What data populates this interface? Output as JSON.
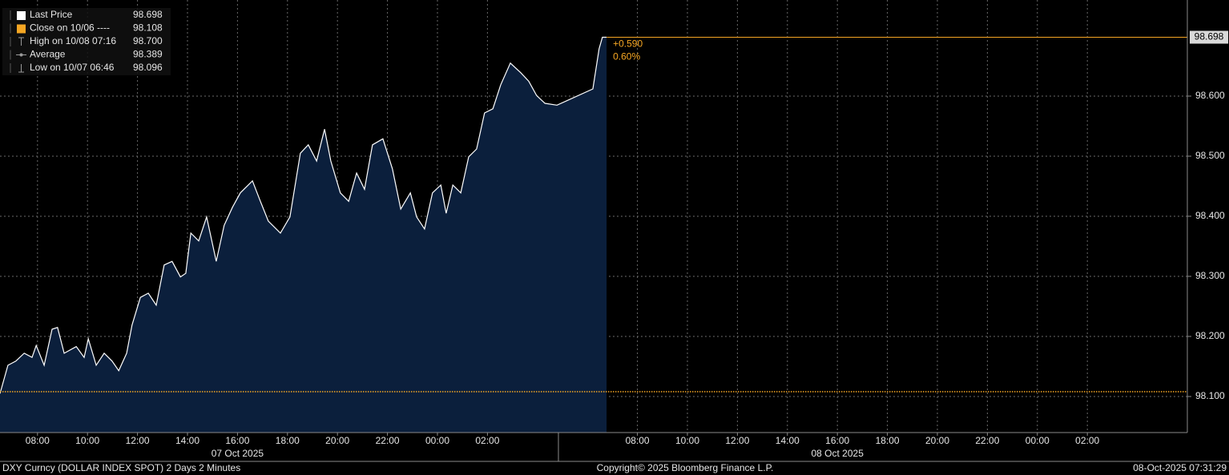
{
  "chart_data": {
    "type": "area",
    "footer_left": "DXY Curncy (DOLLAR INDEX SPOT) 2 Days 2 Minutes",
    "footer_center": "Copyright© 2025 Bloomberg Finance L.P.",
    "footer_right": "08-Oct-2025 07:31:29",
    "date_labels": [
      {
        "value": "2025-10-07 16:00",
        "label": "07 Oct 2025"
      },
      {
        "value": "2025-10-08 16:00",
        "label": "08 Oct 2025"
      }
    ],
    "xlim": [
      "2025-10-07 06:30",
      "2025-10-09 06:00"
    ],
    "xticks": [
      {
        "value": "2025-10-07 08:00",
        "label": "08:00"
      },
      {
        "value": "2025-10-07 10:00",
        "label": "10:00"
      },
      {
        "value": "2025-10-07 12:00",
        "label": "12:00"
      },
      {
        "value": "2025-10-07 14:00",
        "label": "14:00"
      },
      {
        "value": "2025-10-07 16:00",
        "label": "16:00"
      },
      {
        "value": "2025-10-07 18:00",
        "label": "18:00"
      },
      {
        "value": "2025-10-07 20:00",
        "label": "20:00"
      },
      {
        "value": "2025-10-07 22:00",
        "label": "22:00"
      },
      {
        "value": "2025-10-08 00:00",
        "label": "00:00"
      },
      {
        "value": "2025-10-08 02:00",
        "label": "02:00"
      },
      {
        "value": "2025-10-08 08:00",
        "label": "08:00"
      },
      {
        "value": "2025-10-08 10:00",
        "label": "10:00"
      },
      {
        "value": "2025-10-08 12:00",
        "label": "12:00"
      },
      {
        "value": "2025-10-08 14:00",
        "label": "14:00"
      },
      {
        "value": "2025-10-08 16:00",
        "label": "16:00"
      },
      {
        "value": "2025-10-08 18:00",
        "label": "18:00"
      },
      {
        "value": "2025-10-08 20:00",
        "label": "20:00"
      },
      {
        "value": "2025-10-08 22:00",
        "label": "22:00"
      },
      {
        "value": "2025-10-09 00:00",
        "label": "00:00"
      },
      {
        "value": "2025-10-09 02:00",
        "label": "02:00"
      }
    ],
    "ylim": [
      98.04,
      98.76
    ],
    "yticks": [
      {
        "value": 98.1,
        "label": "98.100"
      },
      {
        "value": 98.2,
        "label": "98.200"
      },
      {
        "value": 98.3,
        "label": "98.300"
      },
      {
        "value": 98.4,
        "label": "98.400"
      },
      {
        "value": 98.5,
        "label": "98.500"
      },
      {
        "value": 98.6,
        "label": "98.600"
      }
    ],
    "grid": true,
    "x": [
      "2025-10-07 06:30",
      "2025-10-07 06:49",
      "2025-10-07 07:08",
      "2025-10-07 07:28",
      "2025-10-07 07:47",
      "2025-10-07 07:57",
      "2025-10-07 08:16",
      "2025-10-07 08:35",
      "2025-10-07 08:48",
      "2025-10-07 09:04",
      "2025-10-07 09:33",
      "2025-10-07 09:52",
      "2025-10-07 10:02",
      "2025-10-07 10:21",
      "2025-10-07 10:40",
      "2025-10-07 10:59",
      "2025-10-07 11:15",
      "2025-10-07 11:34",
      "2025-10-07 11:47",
      "2025-10-07 12:07",
      "2025-10-07 12:26",
      "2025-10-07 12:45",
      "2025-10-07 13:04",
      "2025-10-07 13:23",
      "2025-10-07 13:43",
      "2025-10-07 13:56",
      "2025-10-07 14:08",
      "2025-10-07 14:27",
      "2025-10-07 14:46",
      "2025-10-07 15:09",
      "2025-10-07 15:28",
      "2025-10-07 15:48",
      "2025-10-07 16:07",
      "2025-10-07 16:36",
      "2025-10-07 16:55",
      "2025-10-07 17:14",
      "2025-10-07 17:43",
      "2025-10-07 18:06",
      "2025-10-07 18:31",
      "2025-10-07 18:50",
      "2025-10-07 19:10",
      "2025-10-07 19:29",
      "2025-10-07 19:44",
      "2025-10-07 20:07",
      "2025-10-07 20:27",
      "2025-10-07 20:46",
      "2025-10-07 21:05",
      "2025-10-07 21:24",
      "2025-10-07 21:49",
      "2025-10-07 22:12",
      "2025-10-07 22:32",
      "2025-10-07 22:55",
      "2025-10-07 23:10",
      "2025-10-07 23:29",
      "2025-10-07 23:48",
      "2025-10-08 00:08",
      "2025-10-08 00:21",
      "2025-10-08 00:37",
      "2025-10-08 00:56",
      "2025-10-08 01:15",
      "2025-10-08 01:34",
      "2025-10-08 01:53",
      "2025-10-08 02:13",
      "2025-10-08 02:32",
      "2025-10-08 02:55",
      "2025-10-08 03:20",
      "2025-10-08 03:39",
      "2025-10-08 03:58",
      "2025-10-08 04:18",
      "2025-10-08 04:47",
      "2025-10-08 06:13",
      "2025-10-08 06:28",
      "2025-10-08 06:36",
      "2025-10-08 06:46"
    ],
    "series": [
      {
        "name": "Last Price",
        "color": "#ffffff",
        "fill": "#0b1f3c",
        "values": [
          98.105,
          98.152,
          98.159,
          98.172,
          98.165,
          98.185,
          98.152,
          98.212,
          98.215,
          98.172,
          98.183,
          98.165,
          98.196,
          98.152,
          98.172,
          98.159,
          98.143,
          98.172,
          98.219,
          98.265,
          98.272,
          98.252,
          98.319,
          98.325,
          98.299,
          98.305,
          98.372,
          98.359,
          98.399,
          98.325,
          98.385,
          98.415,
          98.439,
          98.459,
          98.425,
          98.392,
          98.372,
          98.399,
          98.505,
          98.519,
          98.492,
          98.545,
          98.492,
          98.439,
          98.425,
          98.472,
          98.445,
          98.519,
          98.529,
          98.479,
          98.412,
          98.439,
          98.399,
          98.379,
          98.439,
          98.452,
          98.405,
          98.452,
          98.439,
          98.499,
          98.512,
          98.572,
          98.579,
          98.619,
          98.655,
          98.639,
          98.625,
          98.601,
          98.588,
          98.585,
          98.612,
          98.679,
          98.698,
          98.698
        ]
      }
    ],
    "reference_lines": [
      {
        "name": "Close on 10/06",
        "value": 98.108,
        "color": "#f5a623",
        "style": "dotted"
      },
      {
        "name": "Last Price",
        "value": 98.698,
        "color": "#f5a623",
        "style": "solid"
      }
    ],
    "annotations": [
      "+0.590",
      "0.60%"
    ],
    "legend": [
      {
        "label": "Last Price",
        "value": 98.698,
        "icon": "square",
        "color": "#ffffff"
      },
      {
        "label": "Close on 10/06 ----",
        "value": 98.108,
        "icon": "square",
        "color": "#f5a623"
      },
      {
        "label": "High on 10/08 07:16",
        "value": 98.7,
        "value_label": "98.700",
        "icon": "high",
        "color": "#9a9a9a"
      },
      {
        "label": "Average",
        "value": 98.389,
        "icon": "avg",
        "color": "#9a9a9a"
      },
      {
        "label": "Low on 10/07 06:46",
        "value": 98.096,
        "icon": "low",
        "color": "#9a9a9a"
      }
    ]
  }
}
